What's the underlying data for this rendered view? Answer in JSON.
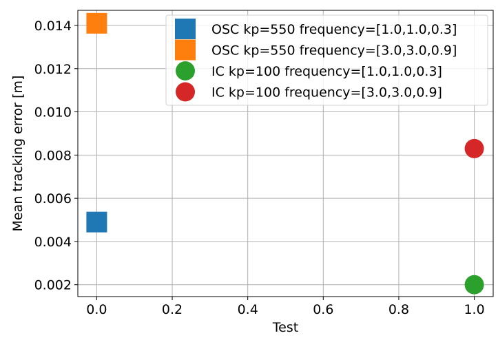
{
  "chart_data": {
    "type": "scatter",
    "xlabel": "Test",
    "ylabel": "Mean tracking error [m]",
    "xlim": [
      -0.05,
      1.05
    ],
    "ylim": [
      0.00145,
      0.0147
    ],
    "xticks": [
      0.0,
      0.2,
      0.4,
      0.6,
      0.8,
      1.0
    ],
    "xtick_labels": [
      "0.0",
      "0.2",
      "0.4",
      "0.6",
      "0.8",
      "1.0"
    ],
    "yticks": [
      0.002,
      0.004,
      0.006,
      0.008,
      0.01,
      0.012,
      0.014
    ],
    "ytick_labels": [
      "0.002",
      "0.004",
      "0.006",
      "0.008",
      "0.010",
      "0.012",
      "0.014"
    ],
    "grid": true,
    "legend_position": "top-right",
    "series": [
      {
        "name": "OSC kp=550 frequency=[1.0,1.0,0.3]",
        "marker": "square",
        "color": "#1f77b4",
        "points": [
          {
            "x": 0.0,
            "y": 0.0049
          }
        ]
      },
      {
        "name": "OSC kp=550 frequency=[3.0,3.0,0.9]",
        "marker": "square",
        "color": "#ff7f0e",
        "points": [
          {
            "x": 0.0,
            "y": 0.0141
          }
        ]
      },
      {
        "name": "IC kp=100 frequency=[1.0,1.0,0.3]",
        "marker": "circle",
        "color": "#2ca02c",
        "points": [
          {
            "x": 1.0,
            "y": 0.002
          }
        ]
      },
      {
        "name": "IC kp=100 frequency=[3.0,3.0,0.9]",
        "marker": "circle",
        "color": "#d62728",
        "points": [
          {
            "x": 1.0,
            "y": 0.0083
          }
        ]
      }
    ]
  }
}
